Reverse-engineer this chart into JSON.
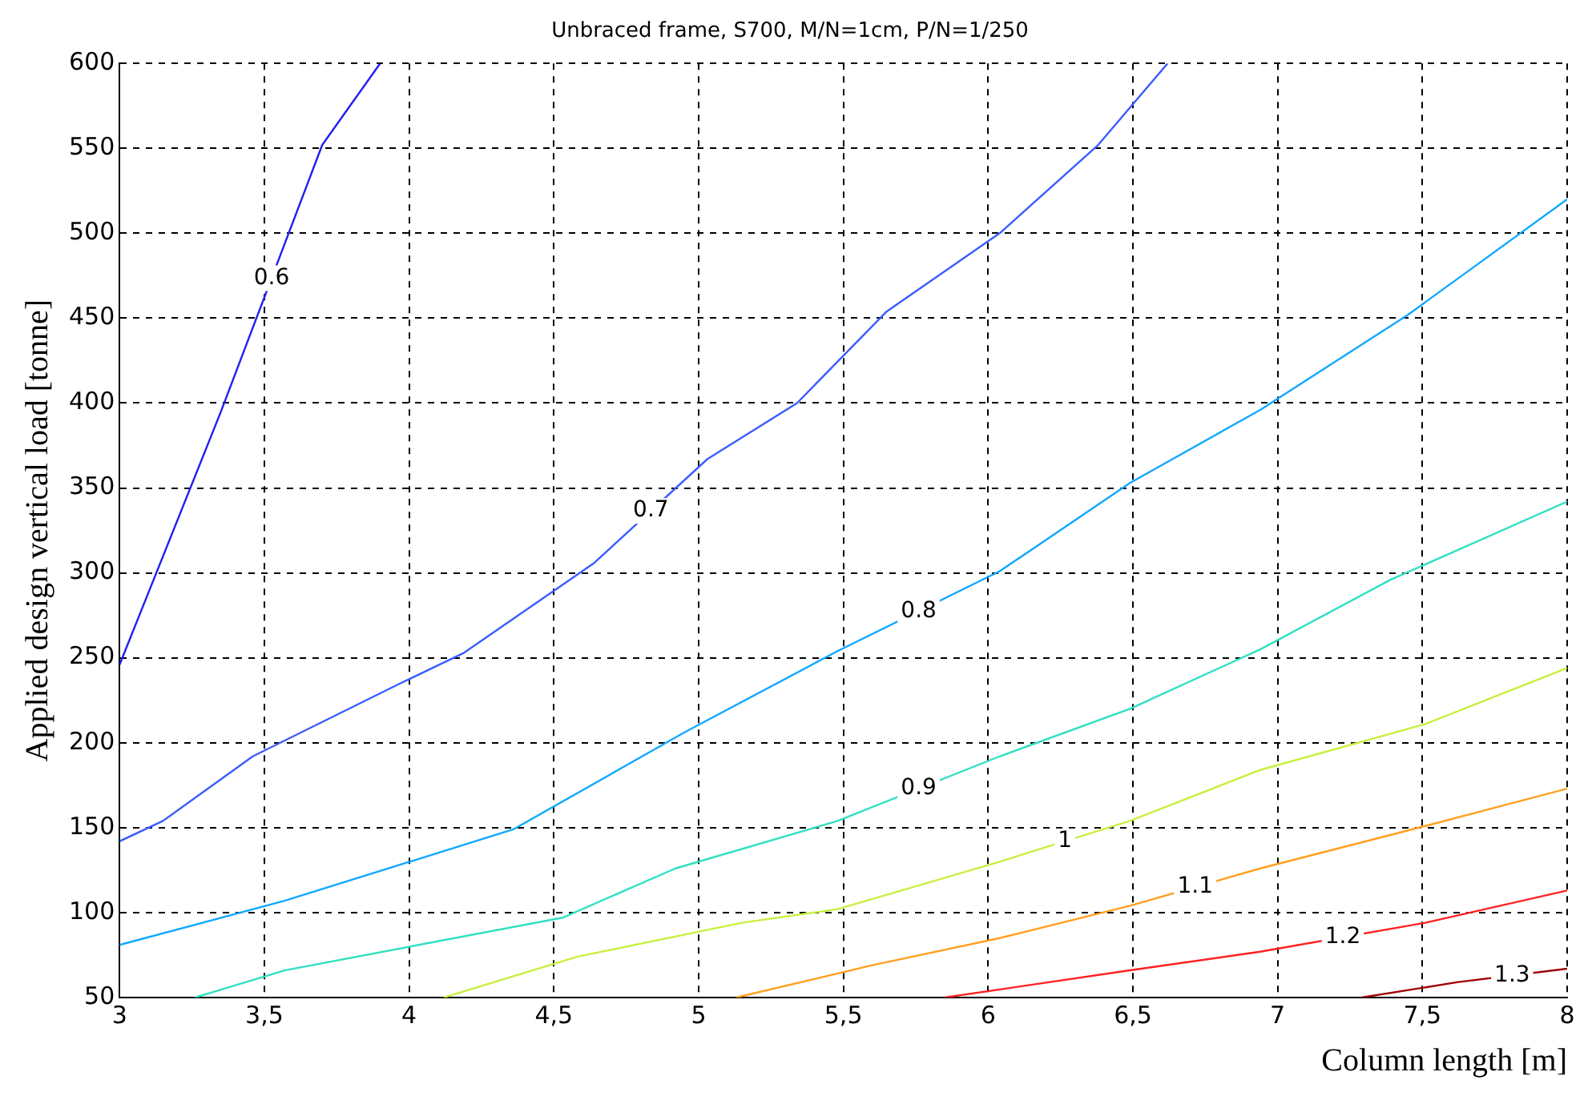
{
  "chart_data": {
    "type": "line",
    "title": "Unbraced frame, S700, M/N=1cm, P/N=1/250",
    "xlabel": "Column length [m]",
    "ylabel": "Applied design vertical load [tonne]",
    "xlim": [
      3,
      8
    ],
    "xticks": [
      3,
      {
        "value": 3.5,
        "label": "3,5"
      },
      4,
      {
        "value": 4.5,
        "label": "4,5"
      },
      5,
      {
        "value": 5.5,
        "label": "5,5"
      },
      6,
      {
        "value": 6.5,
        "label": "6,5"
      },
      7,
      {
        "value": 7.5,
        "label": "7,5"
      },
      8
    ],
    "ylim": [
      50,
      600
    ],
    "yticks": [
      50,
      100,
      150,
      200,
      250,
      300,
      350,
      400,
      450,
      500,
      550,
      600
    ],
    "grid": true,
    "legend": false,
    "marker": "none",
    "line_style": "solid",
    "series": [
      {
        "name": "0.6",
        "color": "#2020f0",
        "x": [
          3,
          3.35,
          3.7,
          3.9
        ],
        "values": [
          246,
          395,
          552,
          600
        ]
      },
      {
        "name": "0.7",
        "color": "#3a5cff",
        "x": [
          3,
          3.15,
          3.46,
          3.97,
          4.19,
          4.64,
          5.03,
          5.34,
          5.65,
          6.04,
          6.38,
          6.62
        ],
        "values": [
          142,
          154,
          192,
          235,
          253,
          306,
          367,
          400,
          454,
          500,
          552,
          600
        ]
      },
      {
        "name": "0.8",
        "color": "#10a8ff",
        "x": [
          3,
          3.57,
          4.36,
          4.95,
          5.48,
          6.04,
          6.49,
          6.94,
          7.45,
          8
        ],
        "values": [
          81,
          107,
          149,
          206,
          254,
          301,
          353,
          396,
          452,
          520
        ]
      },
      {
        "name": "0.9",
        "color": "#30e0c0",
        "x": [
          3.26,
          3.57,
          4.53,
          4.92,
          5.48,
          6.04,
          6.49,
          6.94,
          7.39,
          8
        ],
        "values": [
          50,
          66,
          97,
          126,
          154,
          192,
          220,
          255,
          296,
          342
        ]
      },
      {
        "name": "1",
        "color": "#c8f040",
        "x": [
          4.12,
          4.58,
          5.15,
          5.48,
          6.04,
          6.49,
          6.94,
          7.51,
          8
        ],
        "values": [
          50,
          74,
          94,
          102,
          130,
          154,
          184,
          211,
          244
        ]
      },
      {
        "name": "1.1",
        "color": "#ffa020",
        "x": [
          5.13,
          5.6,
          6.04,
          6.49,
          6.94,
          7.51,
          8
        ],
        "values": [
          50,
          69,
          85,
          104,
          126,
          151,
          173
        ]
      },
      {
        "name": "1.2",
        "color": "#ff2020",
        "x": [
          5.85,
          6.49,
          6.94,
          7.51,
          8
        ],
        "values": [
          50,
          66,
          77,
          94,
          113
        ]
      },
      {
        "name": "1.3",
        "color": "#a00000",
        "x": [
          7.29,
          7.62,
          8
        ],
        "values": [
          50,
          59,
          67
        ]
      }
    ]
  }
}
